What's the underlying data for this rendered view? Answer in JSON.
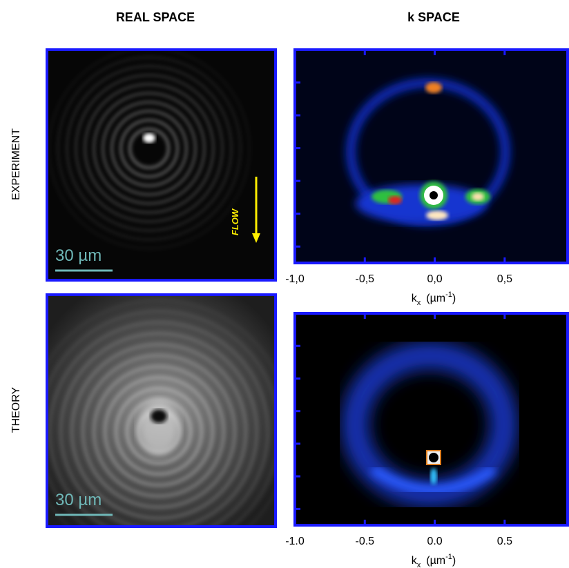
{
  "headers": [
    "REAL SPACE",
    "k SPACE"
  ],
  "rows": [
    {
      "label": "EXPERIMENT",
      "scale_bar": "30 µm",
      "annotation": "FLOW",
      "k_axis": {
        "xlim": [
          -1.0,
          0.95
        ],
        "xticks": [
          {
            "value": -1.0,
            "label": "-1,0"
          },
          {
            "value": -0.5,
            "label": "-0,5"
          },
          {
            "value": 0.0,
            "label": "0,0"
          },
          {
            "value": 0.5,
            "label": "0,5"
          }
        ],
        "xlabel": {
          "symbol": "k",
          "subscript": "x",
          "unit": "(µm",
          "superscript": "-1",
          "close": ")"
        }
      }
    },
    {
      "label": "THEORY",
      "scale_bar": "30 µm",
      "k_axis": {
        "xlim": [
          -1.0,
          0.95
        ],
        "xticks": [
          {
            "value": -1.0,
            "label": "-1.0"
          },
          {
            "value": -0.5,
            "label": "-0.5"
          },
          {
            "value": 0.0,
            "label": "0.0"
          },
          {
            "value": 0.5,
            "label": "0.5"
          }
        ],
        "xlabel": {
          "symbol": "k",
          "subscript": "x",
          "unit": "(µm",
          "superscript": "-1",
          "close": ")"
        }
      }
    }
  ]
}
